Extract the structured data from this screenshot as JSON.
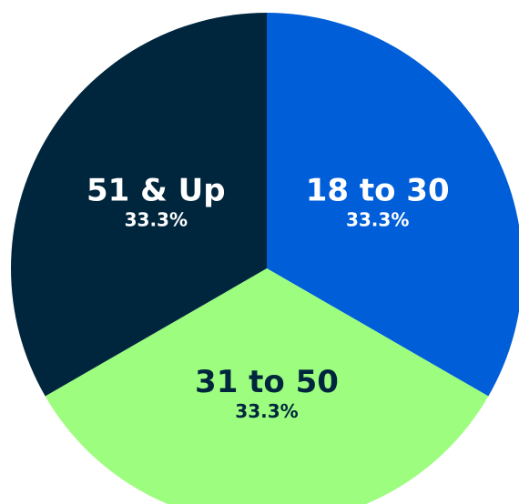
{
  "chart_data": {
    "type": "pie",
    "categories": [
      "18 to 30",
      "31 to 50",
      "51 & Up"
    ],
    "values": [
      33.3,
      33.3,
      33.3
    ],
    "value_labels": [
      "33.3%",
      "33.3%",
      "33.3%"
    ],
    "colors": [
      "#005ed8",
      "#9dfd7e",
      "#00263e"
    ],
    "label_colors": [
      "#ffffff",
      "#00263e",
      "#ffffff"
    ]
  }
}
